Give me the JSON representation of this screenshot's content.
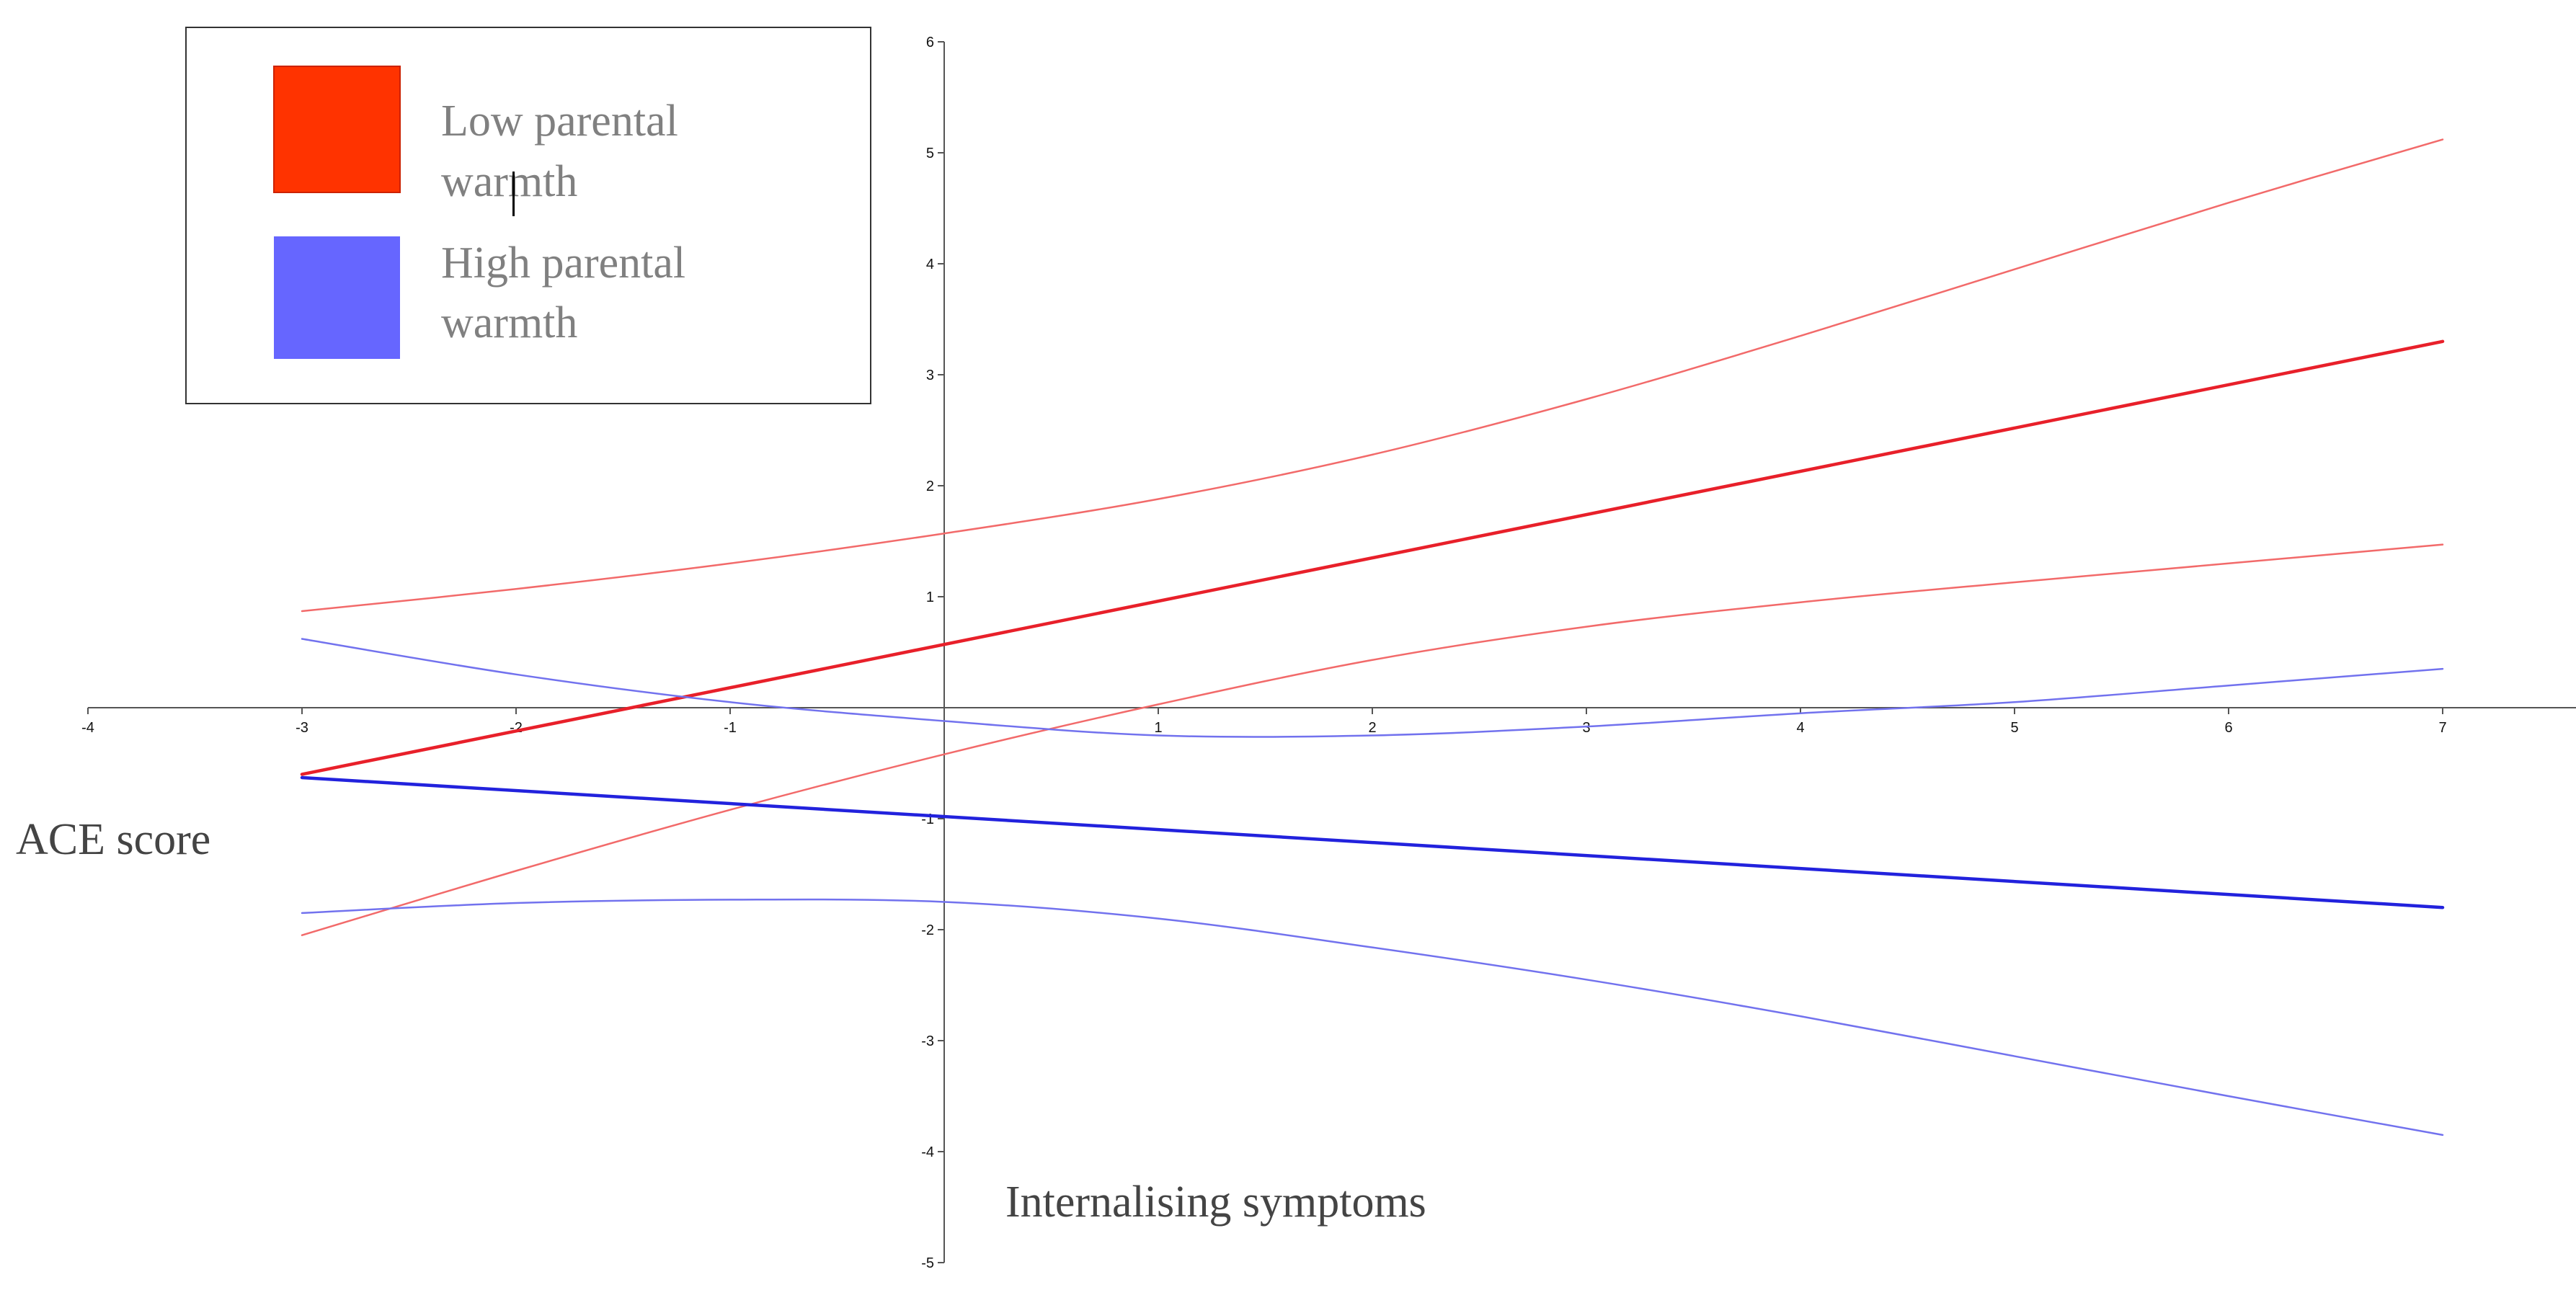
{
  "chart_data": {
    "type": "line",
    "title": "",
    "xlabel": "Internalising symptoms",
    "ylabel": "ACE score",
    "xlim": [
      -4,
      8.2
    ],
    "ylim": [
      -5,
      6
    ],
    "x_ticks": [
      -4,
      -3,
      -2,
      -1,
      1,
      2,
      3,
      4,
      5,
      6,
      7
    ],
    "y_ticks": [
      6,
      5,
      4,
      3,
      2,
      1,
      -1,
      -2,
      -3,
      -4,
      -5
    ],
    "grid": false,
    "legend_position": "top-left",
    "legend": [
      {
        "label": [
          "Low parental",
          "warmth"
        ],
        "color": "#FF3300"
      },
      {
        "label": [
          "High parental",
          "warmth"
        ],
        "color": "#6666FF"
      }
    ],
    "series": [
      {
        "name": "Low parental warmth",
        "role": "estimate",
        "color": "#E8202A",
        "points": [
          [
            -3,
            -0.6
          ],
          [
            7,
            3.3
          ]
        ]
      },
      {
        "name": "Low parental warmth upper CI",
        "role": "ci",
        "color": "#F26A6A",
        "points": [
          [
            -3,
            0.87
          ],
          [
            -2,
            1.07
          ],
          [
            -1,
            1.3
          ],
          [
            0,
            1.57
          ],
          [
            1,
            1.88
          ],
          [
            2,
            2.28
          ],
          [
            3,
            2.78
          ],
          [
            4,
            3.35
          ],
          [
            5,
            3.95
          ],
          [
            6,
            4.55
          ],
          [
            7,
            5.12
          ]
        ]
      },
      {
        "name": "Low parental warmth lower CI",
        "role": "ci",
        "color": "#F26A6A",
        "points": [
          [
            -3,
            -2.05
          ],
          [
            -2,
            -1.47
          ],
          [
            -1,
            -0.92
          ],
          [
            0,
            -0.42
          ],
          [
            1,
            0.03
          ],
          [
            2,
            0.43
          ],
          [
            3,
            0.73
          ],
          [
            4,
            0.95
          ],
          [
            5,
            1.13
          ],
          [
            6,
            1.3
          ],
          [
            7,
            1.47
          ]
        ]
      },
      {
        "name": "High parental warmth",
        "role": "estimate",
        "color": "#2222DD",
        "points": [
          [
            -3,
            -0.63
          ],
          [
            7,
            -1.8
          ]
        ]
      },
      {
        "name": "High parental warmth upper CI",
        "role": "ci",
        "color": "#7272EE",
        "points": [
          [
            -3,
            0.62
          ],
          [
            -2,
            0.3
          ],
          [
            -1,
            0.05
          ],
          [
            0,
            -0.12
          ],
          [
            1,
            -0.25
          ],
          [
            2,
            -0.25
          ],
          [
            3,
            -0.17
          ],
          [
            4,
            -0.05
          ],
          [
            5,
            0.05
          ],
          [
            6,
            0.2
          ],
          [
            7,
            0.35
          ]
        ]
      },
      {
        "name": "High parental warmth lower CI",
        "role": "ci",
        "color": "#7272EE",
        "points": [
          [
            -3,
            -1.85
          ],
          [
            -2,
            -1.76
          ],
          [
            -1,
            -1.73
          ],
          [
            0,
            -1.75
          ],
          [
            1,
            -1.9
          ],
          [
            2,
            -2.16
          ],
          [
            3,
            -2.45
          ],
          [
            4,
            -2.78
          ],
          [
            5,
            -3.14
          ],
          [
            6,
            -3.5
          ],
          [
            7,
            -3.85
          ]
        ]
      }
    ]
  }
}
